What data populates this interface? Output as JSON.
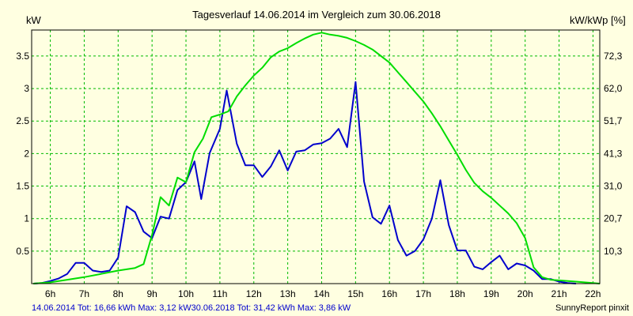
{
  "chart_data": {
    "type": "line",
    "title": "Tagesverlauf 14.06.2014 im Vergleich zum 30.06.2018",
    "ylabel_left": "kW",
    "ylabel_right": "kW/kWp [%]",
    "x_ticks": [
      "6h",
      "7h",
      "8h",
      "9h",
      "10h",
      "11h",
      "12h",
      "13h",
      "14h",
      "15h",
      "16h",
      "17h",
      "18h",
      "19h",
      "20h",
      "21h",
      "22h"
    ],
    "x_tick_values": [
      6,
      7,
      8,
      9,
      10,
      11,
      12,
      13,
      14,
      15,
      16,
      17,
      18,
      19,
      20,
      21,
      22
    ],
    "y_ticks": [
      "0.5",
      "1",
      "1.5",
      "2",
      "2.5",
      "3",
      "3.5"
    ],
    "y_tick_values": [
      0.5,
      1,
      1.5,
      2,
      2.5,
      3,
      3.5
    ],
    "y_right_ticks": [
      "10,3",
      "20,7",
      "31,0",
      "41,3",
      "51,7",
      "62,0",
      "72,3"
    ],
    "xlim": [
      5.45,
      22.2
    ],
    "ylim": [
      0,
      3.9
    ],
    "grid": true,
    "colors": {
      "background": "#ffffe1",
      "grid": "#00bb00",
      "series_2014": "#0000cc",
      "series_2018": "#00dd00"
    },
    "series": [
      {
        "name": "14.06.2014 Tot: 16,66 kWh Max: 3,12 kW",
        "color": "#0000cc",
        "points": [
          [
            5.5,
            0
          ],
          [
            5.75,
            0.01
          ],
          [
            6.0,
            0.04
          ],
          [
            6.25,
            0.08
          ],
          [
            6.5,
            0.15
          ],
          [
            6.75,
            0.32
          ],
          [
            7.0,
            0.32
          ],
          [
            7.25,
            0.2
          ],
          [
            7.5,
            0.18
          ],
          [
            7.75,
            0.2
          ],
          [
            8.0,
            0.4
          ],
          [
            8.25,
            1.19
          ],
          [
            8.5,
            1.1
          ],
          [
            8.75,
            0.8
          ],
          [
            9.0,
            0.7
          ],
          [
            9.25,
            1.03
          ],
          [
            9.5,
            1.0
          ],
          [
            9.75,
            1.44
          ],
          [
            10.0,
            1.56
          ],
          [
            10.25,
            1.88
          ],
          [
            10.45,
            1.3
          ],
          [
            10.7,
            2.01
          ],
          [
            11.0,
            2.38
          ],
          [
            11.2,
            2.97
          ],
          [
            11.5,
            2.15
          ],
          [
            11.75,
            1.82
          ],
          [
            12.0,
            1.82
          ],
          [
            12.25,
            1.64
          ],
          [
            12.5,
            1.8
          ],
          [
            12.75,
            2.05
          ],
          [
            13.0,
            1.74
          ],
          [
            13.25,
            2.03
          ],
          [
            13.5,
            2.05
          ],
          [
            13.75,
            2.14
          ],
          [
            14.0,
            2.16
          ],
          [
            14.25,
            2.23
          ],
          [
            14.5,
            2.38
          ],
          [
            14.75,
            2.1
          ],
          [
            15.0,
            3.1
          ],
          [
            15.25,
            1.57
          ],
          [
            15.5,
            1.02
          ],
          [
            15.75,
            0.92
          ],
          [
            16.0,
            1.2
          ],
          [
            16.25,
            0.67
          ],
          [
            16.5,
            0.43
          ],
          [
            16.75,
            0.5
          ],
          [
            17.0,
            0.68
          ],
          [
            17.25,
            1.0
          ],
          [
            17.5,
            1.59
          ],
          [
            17.75,
            0.9
          ],
          [
            18.0,
            0.51
          ],
          [
            18.25,
            0.51
          ],
          [
            18.5,
            0.26
          ],
          [
            18.75,
            0.22
          ],
          [
            19.0,
            0.33
          ],
          [
            19.25,
            0.43
          ],
          [
            19.5,
            0.22
          ],
          [
            19.75,
            0.31
          ],
          [
            20.0,
            0.28
          ],
          [
            20.25,
            0.2
          ],
          [
            20.5,
            0.07
          ],
          [
            20.75,
            0.07
          ],
          [
            21.0,
            0.03
          ],
          [
            21.25,
            0.01
          ],
          [
            21.5,
            0.0
          ]
        ]
      },
      {
        "name": "30.06.2018 Tot: 31,42 kWh Max: 3,86 kW",
        "color": "#00dd00",
        "points": [
          [
            5.5,
            0
          ],
          [
            6.0,
            0.02
          ],
          [
            6.5,
            0.06
          ],
          [
            7.0,
            0.1
          ],
          [
            7.5,
            0.15
          ],
          [
            8.0,
            0.2
          ],
          [
            8.25,
            0.22
          ],
          [
            8.5,
            0.24
          ],
          [
            8.75,
            0.3
          ],
          [
            9.0,
            0.75
          ],
          [
            9.25,
            1.33
          ],
          [
            9.5,
            1.2
          ],
          [
            9.75,
            1.63
          ],
          [
            10.0,
            1.56
          ],
          [
            10.25,
            2.02
          ],
          [
            10.5,
            2.23
          ],
          [
            10.75,
            2.56
          ],
          [
            11.0,
            2.6
          ],
          [
            11.25,
            2.65
          ],
          [
            11.5,
            2.88
          ],
          [
            11.75,
            3.05
          ],
          [
            12.0,
            3.2
          ],
          [
            12.25,
            3.32
          ],
          [
            12.5,
            3.48
          ],
          [
            12.75,
            3.57
          ],
          [
            13.0,
            3.62
          ],
          [
            13.25,
            3.7
          ],
          [
            13.5,
            3.77
          ],
          [
            13.75,
            3.83
          ],
          [
            14.0,
            3.86
          ],
          [
            14.25,
            3.83
          ],
          [
            14.5,
            3.81
          ],
          [
            14.75,
            3.78
          ],
          [
            15.0,
            3.73
          ],
          [
            15.25,
            3.67
          ],
          [
            15.5,
            3.6
          ],
          [
            15.75,
            3.5
          ],
          [
            16.0,
            3.4
          ],
          [
            16.25,
            3.25
          ],
          [
            16.5,
            3.1
          ],
          [
            16.75,
            2.95
          ],
          [
            17.0,
            2.8
          ],
          [
            17.25,
            2.62
          ],
          [
            17.5,
            2.42
          ],
          [
            17.75,
            2.2
          ],
          [
            18.0,
            1.98
          ],
          [
            18.25,
            1.75
          ],
          [
            18.5,
            1.55
          ],
          [
            18.75,
            1.42
          ],
          [
            19.0,
            1.32
          ],
          [
            19.25,
            1.2
          ],
          [
            19.5,
            1.08
          ],
          [
            19.75,
            0.93
          ],
          [
            20.0,
            0.7
          ],
          [
            20.25,
            0.25
          ],
          [
            20.5,
            0.1
          ],
          [
            20.75,
            0.06
          ],
          [
            21.0,
            0.05
          ],
          [
            21.5,
            0.03
          ],
          [
            22.0,
            0.01
          ],
          [
            22.2,
            0.0
          ]
        ]
      }
    ]
  },
  "footer": {
    "legend_2014": "14.06.2014 Tot: 16,66 kWh Max: 3,12 kW",
    "legend_2018": "30.06.2018 Tot: 31,42 kWh Max: 3,86 kW",
    "credit": "SunnyReport pinxit"
  }
}
